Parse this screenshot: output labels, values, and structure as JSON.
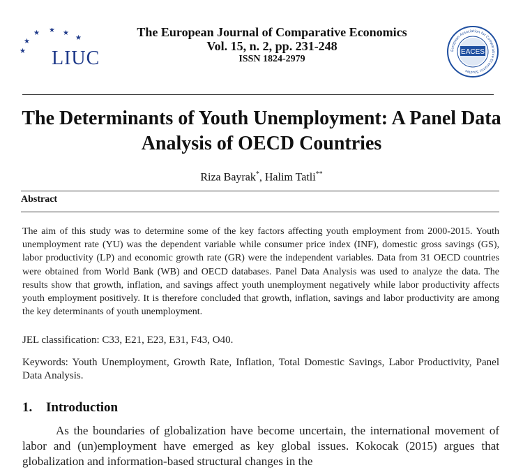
{
  "header": {
    "logo_left_text": "LIUC",
    "journal_name": "The European Journal of Comparative Economics",
    "volume_line": "Vol. 15, n. 2, pp. 231-248",
    "issn_line": "ISSN 1824-2979",
    "logo_right_text": "EACES",
    "logo_right_ring_text": "European Association for Comparative Economic Studies"
  },
  "paper": {
    "title": "The Determinants of Youth Unemployment: A Panel Data Analysis of OECD Countries",
    "authors": [
      {
        "name": "Riza Bayrak",
        "mark": "*"
      },
      {
        "name": "Halim Tatli",
        "mark": "**"
      }
    ],
    "author_separator": ", "
  },
  "abstract": {
    "heading": "Abstract",
    "text": "The aim of this study was to determine some of the key factors affecting youth employment from 2000-2015. Youth unemployment rate (YU) was the dependent variable while consumer price index (INF), domestic gross savings (GS), labor productivity (LP) and economic growth rate (GR) were the independent variables. Data from 31 OECD countries were obtained from World Bank (WB) and OECD databases. Panel Data Analysis was used to analyze the data. The results show that growth, inflation, and savings affect youth unemployment negatively while labor productivity affects youth employment positively. It is therefore concluded that growth, inflation, savings and labor productivity are among the key determinants of youth unemployment."
  },
  "jel": "JEL classification: C33, E21, E23, E31, F43, O40.",
  "keywords": "Keywords: Youth Unemployment, Growth Rate, Inflation, Total Domestic Savings, Labor Productivity, Panel Data Analysis.",
  "section": {
    "number": "1.",
    "title": "Introduction",
    "paragraph": "As the boundaries of globalization have become uncertain, the international movement of labor and (un)employment have emerged as key global issues. Kokocak (2015) argues that globalization and information-based structural changes in the"
  },
  "colors": {
    "liuc_blue": "#1f3a8a",
    "eaces_blue": "#1f4fa0"
  }
}
